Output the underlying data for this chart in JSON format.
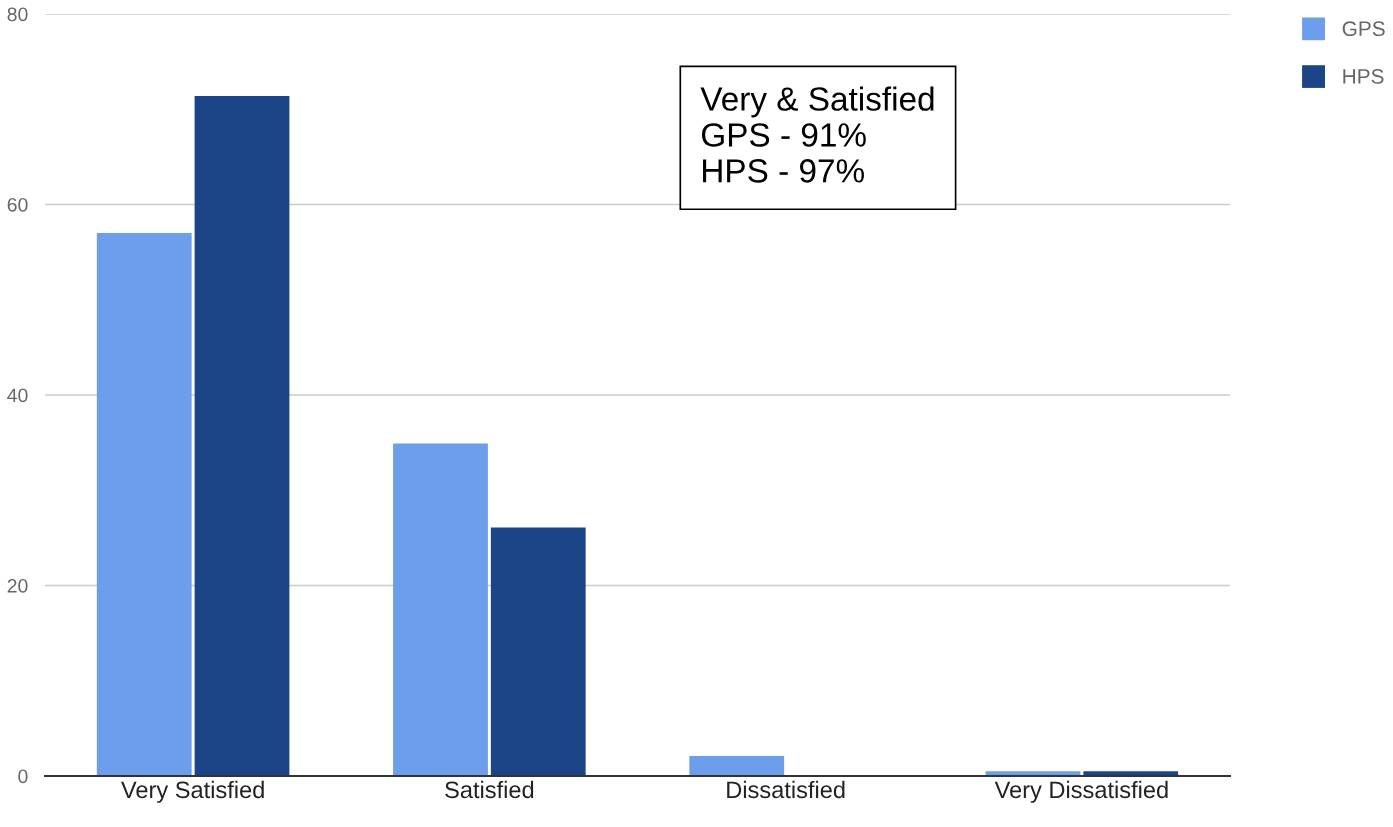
{
  "chart_data": {
    "type": "bar",
    "categories": [
      "Very Satisfied",
      "Satisfied",
      "Dissatisfied",
      "Very Dissatisfied"
    ],
    "series": [
      {
        "name": "GPS",
        "color": "#6d9eeb",
        "values": [
          57,
          34.9,
          2.1,
          0.5
        ]
      },
      {
        "name": "HPS",
        "color": "#1c4587",
        "values": [
          71.4,
          26.1,
          0,
          0.5
        ]
      }
    ],
    "ylim": [
      0,
      80
    ],
    "yticks": [
      0,
      20,
      40,
      60,
      80
    ],
    "grid": "y",
    "legend": "top right",
    "annotations": [
      "Very & Satisfied\nGPS - 91%\nHPS - 97%"
    ]
  }
}
